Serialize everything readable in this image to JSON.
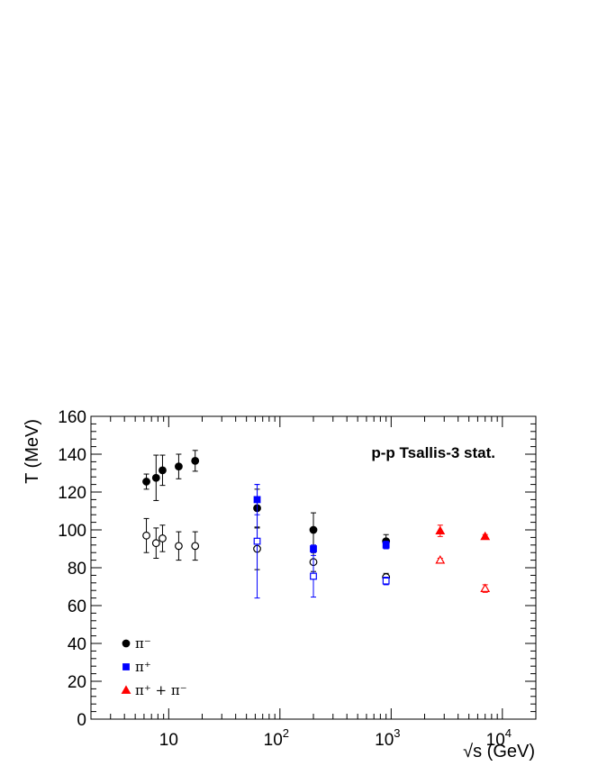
{
  "chart_data": {
    "type": "scatter",
    "xscale": "log",
    "xlim": [
      2,
      20000
    ],
    "ylim": [
      0,
      160
    ],
    "grid": false,
    "xlabel": "√s (GeV)",
    "ylabel": "T (MeV)",
    "annotation": "p-p  Tsallis-3 stat.",
    "x_tick_labels": [
      "10",
      "10^2",
      "10^3",
      "10^4"
    ],
    "y_tick_labels": [
      "0",
      "20",
      "40",
      "60",
      "80",
      "100",
      "120",
      "140",
      "160"
    ],
    "legend_position": "bottom-left",
    "legend": [
      {
        "label": "π⁻",
        "marker": "circle",
        "color": "#000000"
      },
      {
        "label": "π⁺",
        "marker": "square",
        "color": "#0000ff"
      },
      {
        "label": "π⁺ + π⁻",
        "marker": "triangle",
        "color": "#ff0000"
      }
    ],
    "series": [
      {
        "marker": "circle",
        "filled": true,
        "color": "#000000",
        "points": [
          {
            "x": 6.3,
            "y": 125.5,
            "err": 4
          },
          {
            "x": 7.7,
            "y": 127.5,
            "err": 12
          },
          {
            "x": 8.8,
            "y": 131.5,
            "err": 8
          },
          {
            "x": 12.3,
            "y": 133.5,
            "err": 6.5
          },
          {
            "x": 17.3,
            "y": 136.5,
            "err": 5.5
          },
          {
            "x": 62.4,
            "y": 111.5,
            "err": 10
          },
          {
            "x": 200,
            "y": 100,
            "err": 9
          },
          {
            "x": 900,
            "y": 94,
            "err": 3.5
          }
        ]
      },
      {
        "marker": "circle",
        "filled": false,
        "color": "#000000",
        "points": [
          {
            "x": 6.3,
            "y": 97,
            "err": 9
          },
          {
            "x": 7.7,
            "y": 93,
            "err": 8
          },
          {
            "x": 8.8,
            "y": 95.5,
            "err": 7
          },
          {
            "x": 12.3,
            "y": 91.5,
            "err": 7.5
          },
          {
            "x": 17.3,
            "y": 91.5,
            "err": 7.5
          },
          {
            "x": 62.4,
            "y": 90,
            "err": 11
          },
          {
            "x": 200,
            "y": 83,
            "err": 5
          },
          {
            "x": 900,
            "y": 75,
            "err": 2
          }
        ]
      },
      {
        "marker": "square",
        "filled": true,
        "color": "#0000ff",
        "points": [
          {
            "x": 62.4,
            "y": 116,
            "err": 8
          },
          {
            "x": 200,
            "y": 90,
            "err": 2
          },
          {
            "x": 900,
            "y": 92,
            "err": 2
          }
        ]
      },
      {
        "marker": "square",
        "filled": false,
        "color": "#0000ff",
        "points": [
          {
            "x": 62.4,
            "y": 94,
            "err": 30
          },
          {
            "x": 200,
            "y": 75.5,
            "err": 11
          },
          {
            "x": 900,
            "y": 73,
            "err": 2
          }
        ]
      },
      {
        "marker": "triangle",
        "filled": true,
        "color": "#ff0000",
        "points": [
          {
            "x": 2760,
            "y": 99.5,
            "err": 3
          },
          {
            "x": 7000,
            "y": 96.5,
            "err": 1
          }
        ]
      },
      {
        "marker": "triangle",
        "filled": false,
        "color": "#ff0000",
        "points": [
          {
            "x": 2760,
            "y": 84,
            "err": 1
          },
          {
            "x": 7000,
            "y": 69,
            "err": 2
          }
        ]
      }
    ]
  }
}
